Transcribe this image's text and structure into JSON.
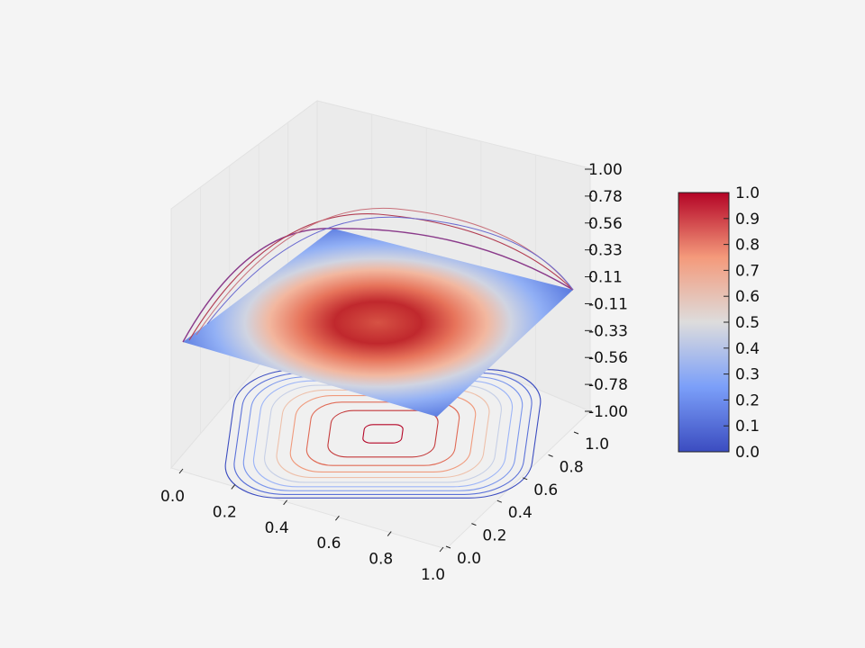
{
  "chart_data": {
    "type": "surface3d",
    "title": "",
    "xlabel": "",
    "ylabel": "",
    "zlabel": "",
    "x_ticks": [
      "0.0",
      "0.2",
      "0.4",
      "0.6",
      "0.8",
      "1.0"
    ],
    "y_ticks": [
      "0.0",
      "0.2",
      "0.4",
      "0.6",
      "0.8",
      "1.0"
    ],
    "z_ticks": [
      "-1.00",
      "-0.78",
      "-0.56",
      "-0.33",
      "-0.11",
      "0.11",
      "0.33",
      "0.56",
      "0.78",
      "1.00"
    ],
    "xlim": [
      0,
      1
    ],
    "ylim": [
      0,
      1
    ],
    "zlim": [
      -1,
      1
    ],
    "colormap": "coolwarm",
    "colormap_colors": [
      "#3b4cc0",
      "#dddddd",
      "#b40426"
    ],
    "surface_z_range": [
      0,
      1
    ],
    "peak": {
      "x": 0.5,
      "y": 0.5,
      "z": 1.0
    },
    "contour_levels": [
      0.1,
      0.2,
      0.3,
      0.4,
      0.5,
      0.6,
      0.7,
      0.8,
      0.9,
      0.99
    ],
    "colorbar": {
      "ticks": [
        "0.0",
        "0.1",
        "0.2",
        "0.3",
        "0.4",
        "0.5",
        "0.6",
        "0.7",
        "0.8",
        "0.9",
        "1.0"
      ],
      "range": [
        0,
        1
      ]
    },
    "grid": true
  }
}
